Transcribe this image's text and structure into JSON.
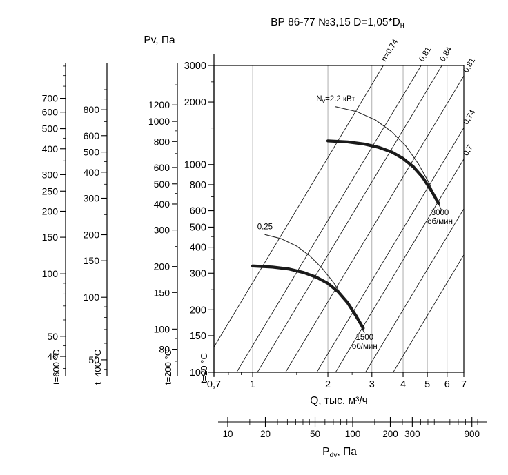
{
  "title": {
    "main": "ВР 86-77 №3,15 D=1,05*D",
    "sub": "н"
  },
  "chart_data": {
    "type": "line",
    "title": "ВР 86-77 №3,15 D=1,05*Dн",
    "x_axis": {
      "label": "Q, тыс. м³/ч",
      "scale": "log",
      "range": [
        0.7,
        7
      ],
      "ticks": [
        0.7,
        1,
        2,
        3,
        4,
        5,
        6,
        7
      ],
      "tick_labels": [
        "0,7",
        "1",
        "2",
        "3",
        "4",
        "5",
        "6",
        "7"
      ]
    },
    "y_axis": {
      "label": "Pv, Па",
      "temperature": "t=20 °C",
      "scale": "log",
      "range": [
        100,
        3000
      ],
      "tick_labels": [
        100,
        150,
        200,
        300,
        400,
        500,
        600,
        800,
        1000,
        2000,
        3000
      ]
    },
    "aux_y_axes": [
      {
        "temperature": "t=200 °C",
        "density_factor": 0.6195,
        "tick_labels": [
          80,
          100,
          150,
          200,
          300,
          400,
          500,
          600,
          800,
          1000,
          1200
        ]
      },
      {
        "temperature": "t=400 °C",
        "density_factor": 0.4354,
        "tick_labels": [
          50,
          100,
          150,
          200,
          300,
          400,
          500,
          600,
          800
        ]
      },
      {
        "temperature": "t=600 °C",
        "density_factor": 0.3356,
        "tick_labels": [
          40,
          50,
          100,
          150,
          200,
          250,
          300,
          400,
          500,
          600,
          700
        ]
      }
    ],
    "pdv_axis": {
      "label_main": "P",
      "label_sub": "dv",
      "label_rest": ", Па",
      "scale": "log",
      "tick_labels": [
        10,
        20,
        50,
        100,
        200,
        300,
        900
      ]
    },
    "efficiency_lines": [
      {
        "k": 270,
        "label": "n=0,74",
        "label_edge": "top"
      },
      {
        "k": 134.5,
        "label": "0,81",
        "label_edge": "top"
      },
      {
        "k": 91.7,
        "label": "0,84",
        "label_edge": "top"
      },
      {
        "k": 54.6,
        "label": "0,81",
        "label_edge": "right"
      },
      {
        "k": 30.7,
        "label": "0,74",
        "label_edge": "right"
      },
      {
        "k": 21.7,
        "label": "0,7",
        "label_edge": "right"
      },
      {
        "k": 12.5,
        "label": "",
        "label_edge": "none"
      },
      {
        "k": 7.5,
        "label": "",
        "label_edge": "none"
      }
    ],
    "fan_curves": [
      {
        "name": "3000 об/мин",
        "rpm": 3000,
        "points": [
          [
            2.0,
            1300
          ],
          [
            2.4,
            1285
          ],
          [
            2.8,
            1255
          ],
          [
            3.2,
            1210
          ],
          [
            3.6,
            1150
          ],
          [
            4.0,
            1070
          ],
          [
            4.4,
            975
          ],
          [
            4.8,
            865
          ],
          [
            5.2,
            745
          ],
          [
            5.55,
            650
          ]
        ]
      },
      {
        "name": "1500 об/мин",
        "rpm": 1500,
        "points": [
          [
            1.0,
            325
          ],
          [
            1.2,
            321
          ],
          [
            1.4,
            314
          ],
          [
            1.6,
            302
          ],
          [
            1.8,
            287
          ],
          [
            2.0,
            268
          ],
          [
            2.2,
            244
          ],
          [
            2.4,
            216
          ],
          [
            2.6,
            186
          ],
          [
            2.77,
            163
          ]
        ]
      }
    ],
    "power_curves": [
      {
        "label_main": "N",
        "label_sub": "v",
        "label_rest": "=2.2 кВт",
        "label": "Nv=2.2 кВт",
        "points": [
          [
            2.15,
            1900
          ],
          [
            2.6,
            1800
          ],
          [
            3.1,
            1640
          ],
          [
            3.6,
            1440
          ],
          [
            4.1,
            1230
          ],
          [
            4.6,
            1010
          ],
          [
            5.1,
            810
          ],
          [
            5.5,
            660
          ],
          [
            5.75,
            590
          ]
        ]
      },
      {
        "label_main": "0.25",
        "label_sub": "",
        "label_rest": "",
        "label": "0.25",
        "points": [
          [
            1.12,
            460
          ],
          [
            1.3,
            440
          ],
          [
            1.5,
            405
          ],
          [
            1.7,
            362
          ],
          [
            1.9,
            316
          ],
          [
            2.1,
            272
          ],
          [
            2.3,
            230
          ],
          [
            2.5,
            196
          ],
          [
            2.7,
            168
          ],
          [
            2.8,
            155
          ]
        ]
      }
    ]
  }
}
